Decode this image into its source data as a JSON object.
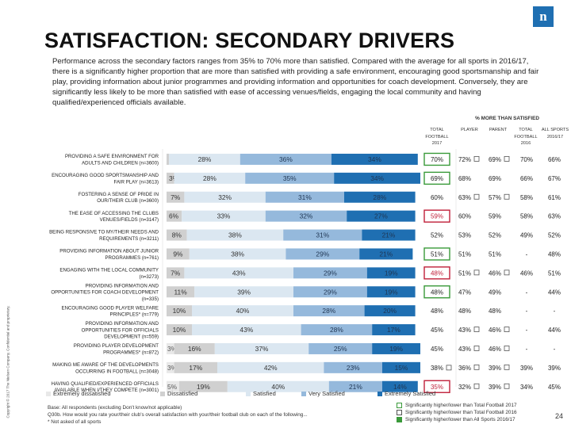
{
  "title": "SATISFACTION: SECONDARY DRIVERS",
  "logo_letter": "n",
  "intro": "Performance across the secondary factors ranges from 35% to 70% more than satisfied. Compared with the average for all sports in 2016/17, there is a significantly higher proportion that are more than satisfied with providing a safe environment, encouraging good sportsmanship and fair play, providing information about junior programmes and providing information and opportunities for coach development. Conversely, they are significantly less likely to be more than satisfied with ease of accessing venues/fields, engaging the local community and having qualified/experienced officials available.",
  "pct_label": "% MORE THAN SATISFIED",
  "columns": [
    {
      "key": "total",
      "label": "TOTAL FOOTBALL 2017"
    },
    {
      "key": "player",
      "label": "PLAYER"
    },
    {
      "key": "parent",
      "label": "PARENT"
    },
    {
      "key": "total2016",
      "label": "TOTAL FOOTBALL 2016"
    },
    {
      "key": "allsports",
      "label": "ALL SPORTS 2016/17"
    }
  ],
  "colors": {
    "extremely_dissatisfied": "#e8e8e8",
    "dissatisfied": "#d0d0d0",
    "satisfied": "#dbe7f1",
    "very_satisfied": "#95b9dc",
    "extremely_satisfied": "#1f6fb2",
    "highlight_green": "#3a9a3a",
    "highlight_red": "#c0203a"
  },
  "chart_data": {
    "type": "bar",
    "orientation": "horizontal-stacked-100",
    "series_names": [
      "Extremely dissatisfied",
      "Dissatisfied",
      "Satisfied",
      "Very Satisfied",
      "Extremely Satisfied"
    ],
    "rows": [
      {
        "label": "PROVIDING A SAFE ENVIRONMENT FOR ADULTS AND CHILDREN (n=3600)",
        "segments": [
          0,
          1,
          28,
          36,
          34
        ],
        "labels": [
          "",
          "1%",
          "28%",
          "36%",
          "34%"
        ],
        "total": "70%",
        "total_flag": "green",
        "player": "72%",
        "player_mark": true,
        "parent": "69%",
        "parent_mark": true,
        "total2016": "70%",
        "allsports": "66%"
      },
      {
        "label": "ENCOURAGING GOOD SPORTSMANSHIP AND FAIR PLAY (n=3613)",
        "segments": [
          0,
          3,
          28,
          35,
          34
        ],
        "labels": [
          "",
          "3%",
          "28%",
          "35%",
          "34%"
        ],
        "total": "69%",
        "total_flag": "green",
        "player": "68%",
        "player_mark": false,
        "parent": "69%",
        "parent_mark": false,
        "total2016": "66%",
        "allsports": "67%"
      },
      {
        "label": "FOSTERING A SENSE OF PRIDE IN OUR/THEIR CLUB (n=3600)",
        "segments": [
          0,
          7,
          32,
          31,
          28
        ],
        "labels": [
          "",
          "7%",
          "32%",
          "31%",
          "28%"
        ],
        "total": "60%",
        "total_flag": "",
        "player": "63%",
        "player_mark": true,
        "parent": "57%",
        "parent_mark": true,
        "total2016": "58%",
        "allsports": "61%"
      },
      {
        "label": "THE EASE OF ACCESSING THE CLUBS VENUES/FIELDS (n=3147)",
        "segments": [
          0,
          6,
          33,
          32,
          27
        ],
        "labels": [
          "",
          "6%",
          "33%",
          "32%",
          "27%"
        ],
        "total": "59%",
        "total_flag": "red",
        "player": "60%",
        "player_mark": false,
        "parent": "59%",
        "parent_mark": false,
        "total2016": "58%",
        "allsports": "63%"
      },
      {
        "label": "BEING RESPONSIVE TO MY/THEIR NEEDS AND REQUIREMENTS (n=3211)",
        "segments": [
          0,
          8,
          38,
          31,
          21
        ],
        "labels": [
          "",
          "8%",
          "38%",
          "31%",
          "21%"
        ],
        "total": "52%",
        "total_flag": "",
        "player": "53%",
        "player_mark": false,
        "parent": "52%",
        "parent_mark": false,
        "total2016": "49%",
        "allsports": "52%"
      },
      {
        "label": "PROVIDING INFORMATION ABOUT JUNIOR PROGRAMMES (n=761)",
        "segments": [
          0,
          9,
          38,
          29,
          21
        ],
        "labels": [
          "",
          "9%",
          "38%",
          "29%",
          "21%"
        ],
        "total": "51%",
        "total_flag": "green",
        "player": "51%",
        "player_mark": false,
        "parent": "51%",
        "parent_mark": false,
        "total2016": "-",
        "allsports": "48%"
      },
      {
        "label": "ENGAGING WITH THE LOCAL COMMUNITY (n=3273)",
        "segments": [
          0,
          7,
          43,
          29,
          19
        ],
        "labels": [
          "",
          "7%",
          "43%",
          "29%",
          "19%"
        ],
        "total": "48%",
        "total_flag": "red",
        "player": "51%",
        "player_mark": true,
        "parent": "46%",
        "parent_mark": true,
        "total2016": "46%",
        "allsports": "51%"
      },
      {
        "label": "PROVIDING INFORMATION AND OPPORTUNITIES FOR COACH DEVELOPMENT (n=335)",
        "segments": [
          0,
          11,
          39,
          29,
          19
        ],
        "labels": [
          "",
          "11%",
          "39%",
          "29%",
          "19%"
        ],
        "total": "48%",
        "total_flag": "green",
        "player": "47%",
        "player_mark": false,
        "parent": "49%",
        "parent_mark": false,
        "total2016": "-",
        "allsports": "44%"
      },
      {
        "label": "ENCOURAGING GOOD PLAYER WELFARE PRINCIPLES* (n=779)",
        "segments": [
          0,
          10,
          40,
          28,
          20
        ],
        "labels": [
          "",
          "10%",
          "40%",
          "28%",
          "20%"
        ],
        "total": "48%",
        "total_flag": "",
        "player": "48%",
        "player_mark": false,
        "parent": "48%",
        "parent_mark": false,
        "total2016": "-",
        "allsports": "-"
      },
      {
        "label": "PROVIDING INFORMATION AND OPPORTUNITIES FOR OFFICIALS DEVELOPMENT (n=559)",
        "segments": [
          0,
          10,
          43,
          28,
          17
        ],
        "labels": [
          "",
          "10%",
          "43%",
          "28%",
          "17%"
        ],
        "total": "45%",
        "total_flag": "",
        "player": "43%",
        "player_mark": true,
        "parent": "46%",
        "parent_mark": true,
        "total2016": "-",
        "allsports": "44%"
      },
      {
        "label": "PROVIDING PLAYER DEVELOPMENT PROGRAMMES* (n=872)",
        "segments": [
          3,
          16,
          37,
          25,
          19
        ],
        "labels": [
          "3%",
          "16%",
          "37%",
          "25%",
          "19%"
        ],
        "total": "45%",
        "total_flag": "",
        "player": "43%",
        "player_mark": true,
        "parent": "46%",
        "parent_mark": true,
        "total2016": "-",
        "allsports": "-"
      },
      {
        "label": "MAKING ME AWARE OF THE DEVELOPMENTS OCCURRING IN FOOTBALL (n=3048)",
        "segments": [
          3,
          17,
          42,
          23,
          15
        ],
        "labels": [
          "3%",
          "17%",
          "42%",
          "23%",
          "15%"
        ],
        "total": "38%",
        "total_flag": "",
        "total_mark": true,
        "player": "36%",
        "player_mark": true,
        "parent": "39%",
        "parent_mark": true,
        "total2016": "39%",
        "allsports": "39%"
      },
      {
        "label": "HAVING QUALIFIED/EXPERIENCED OFFICIALS AVAILABLE WHEN I/THEY COMPETE (n=3001)",
        "segments": [
          5,
          19,
          40,
          21,
          14
        ],
        "labels": [
          "5%",
          "19%",
          "40%",
          "21%",
          "14%"
        ],
        "total": "35%",
        "total_flag": "red",
        "player": "32%",
        "player_mark": true,
        "parent": "39%",
        "parent_mark": true,
        "total2016": "34%",
        "allsports": "45%"
      }
    ]
  },
  "legend": [
    "Extremely dissatisfied",
    "Dissatisfied",
    "Satisfied",
    "Very Satisfied",
    "Extremely Satisfied"
  ],
  "base_lines": [
    "Base: All respondents (excluding Don't know/not applicable)",
    "Q30b. How would you rate your/their club's overall satisfaction with your/their football club on each of the following...",
    "* Not asked of all sports"
  ],
  "keys": [
    "Significantly higher/lower than Total Football 2017",
    "Significantly higher/lower than Total Football 2016",
    "Significantly higher/lower than All Sports 2016/17"
  ],
  "copyright": "Copyright © 2017 The Nielsen Company. Confidential and proprietary.",
  "page_number": "24"
}
